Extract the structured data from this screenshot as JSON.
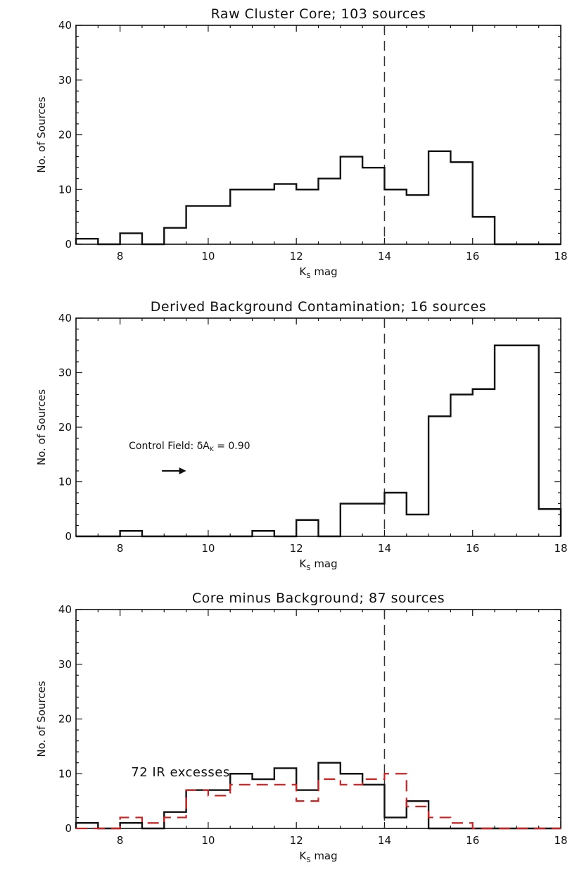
{
  "chart_data": [
    {
      "type": "histogram",
      "title": "Raw Cluster Core; 103 sources",
      "xlabel_main": "K",
      "xlabel_sub": "S",
      "xlabel_rest": " mag",
      "ylabel": "No. of Sources",
      "xlim": [
        7,
        18
      ],
      "ylim": [
        0,
        40
      ],
      "xticks": [
        8,
        10,
        12,
        14,
        16,
        18
      ],
      "yticks": [
        0,
        10,
        20,
        30,
        40
      ],
      "vline": 14,
      "series": [
        {
          "color": "#111111",
          "style": "solid",
          "bin_edges": [
            7,
            7.5,
            8,
            8.5,
            9,
            9.5,
            10,
            10.5,
            11,
            11.5,
            12,
            12.5,
            13,
            13.5,
            14,
            14.5,
            15,
            15.5,
            16,
            16.5,
            17,
            17.5,
            18
          ],
          "counts": [
            1,
            0,
            2,
            0,
            3,
            7,
            7,
            10,
            10,
            11,
            10,
            12,
            16,
            14,
            10,
            9,
            17,
            15,
            5,
            0,
            0,
            0
          ]
        }
      ],
      "annotations": []
    },
    {
      "type": "histogram",
      "title": "Derived Background Contamination; 16 sources",
      "xlabel_main": "K",
      "xlabel_sub": "S",
      "xlabel_rest": " mag",
      "ylabel": "No. of Sources",
      "xlim": [
        7,
        18
      ],
      "ylim": [
        0,
        40
      ],
      "xticks": [
        8,
        10,
        12,
        14,
        16,
        18
      ],
      "yticks": [
        0,
        10,
        20,
        30,
        40
      ],
      "vline": 14,
      "series": [
        {
          "color": "#111111",
          "style": "solid",
          "bin_edges": [
            7,
            7.5,
            8,
            8.5,
            9,
            9.5,
            10,
            10.5,
            11,
            11.5,
            12,
            12.5,
            13,
            13.5,
            14,
            14.5,
            15,
            15.5,
            16,
            16.5,
            17,
            17.5,
            18
          ],
          "counts": [
            0,
            0,
            1,
            0,
            0,
            0,
            0,
            0,
            1,
            0,
            3,
            0,
            6,
            6,
            8,
            4,
            22,
            26,
            27,
            35,
            35,
            5
          ]
        }
      ],
      "annotations": [
        {
          "id": "control-field",
          "text_main": "Control Field: δA",
          "text_sub": "K",
          "text_rest": " = 0.90",
          "x": 8.2,
          "y": 16,
          "size": "small"
        }
      ],
      "arrow": {
        "x1": 8.95,
        "x2": 9.5,
        "y": 12
      }
    },
    {
      "type": "histogram",
      "title": "Core minus Background; 87 sources",
      "xlabel_main": "K",
      "xlabel_sub": "S",
      "xlabel_rest": " mag",
      "ylabel": "No. of Sources",
      "xlim": [
        7,
        18
      ],
      "ylim": [
        0,
        40
      ],
      "xticks": [
        8,
        10,
        12,
        14,
        16,
        18
      ],
      "yticks": [
        0,
        10,
        20,
        30,
        40
      ],
      "vline": 14,
      "series": [
        {
          "color": "#111111",
          "style": "solid",
          "bin_edges": [
            7,
            7.5,
            8,
            8.5,
            9,
            9.5,
            10,
            10.5,
            11,
            11.5,
            12,
            12.5,
            13,
            13.5,
            14,
            14.5,
            15,
            15.5,
            16,
            16.5,
            17,
            17.5,
            18
          ],
          "counts": [
            1,
            0,
            1,
            0,
            3,
            7,
            7,
            10,
            9,
            11,
            7,
            12,
            10,
            8,
            2,
            5,
            0,
            0,
            0,
            0,
            0,
            0
          ]
        },
        {
          "color": "#cc2222",
          "style": "dashed",
          "bin_edges": [
            7,
            7.5,
            8,
            8.5,
            9,
            9.5,
            10,
            10.5,
            11,
            11.5,
            12,
            12.5,
            13,
            13.5,
            14,
            14.5,
            15,
            15.5,
            16,
            16.5,
            17,
            17.5,
            18
          ],
          "counts": [
            0,
            0,
            2,
            1,
            2,
            7,
            6,
            8,
            8,
            8,
            5,
            9,
            8,
            9,
            10,
            4,
            2,
            1,
            0,
            0,
            0,
            0
          ]
        }
      ],
      "annotations": [
        {
          "id": "ir-excesses",
          "text_main": "72 IR excesses",
          "x": 8.25,
          "y": 9.5,
          "size": "big"
        }
      ]
    }
  ]
}
